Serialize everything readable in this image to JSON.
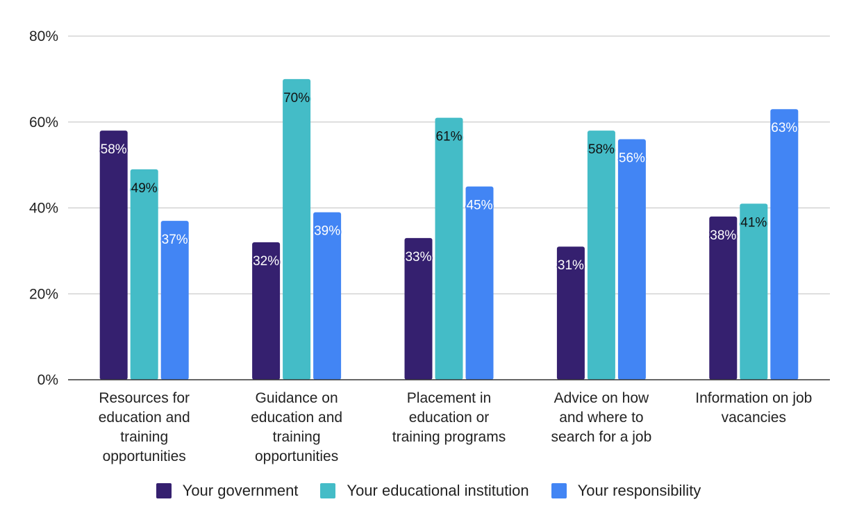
{
  "chart_data": {
    "type": "bar",
    "categories": [
      [
        "Resources for",
        "education and",
        "training",
        "opportunities"
      ],
      [
        "Guidance on",
        "education and",
        "training",
        "opportunities"
      ],
      [
        "Placement in",
        "education or",
        "training programs"
      ],
      [
        "Advice on how",
        "and where to",
        "search for a job"
      ],
      [
        "Information on job",
        "vacancies"
      ]
    ],
    "series": [
      {
        "name": "Your government",
        "color": "#35206f",
        "values": [
          58,
          32,
          33,
          31,
          38
        ],
        "labels": [
          "58%",
          "32%",
          "33%",
          "31%",
          "38%"
        ]
      },
      {
        "name": "Your educational institution",
        "color": "#44bcc7",
        "values": [
          49,
          70,
          61,
          58,
          41
        ],
        "labels": [
          "49%",
          "70%",
          "61%",
          "58%",
          "41%"
        ]
      },
      {
        "name": "Your responsibility",
        "color": "#4285f4",
        "values": [
          37,
          39,
          45,
          56,
          63
        ],
        "labels": [
          "37%",
          "39%",
          "45%",
          "56%",
          "63%"
        ]
      }
    ],
    "ylim": [
      0,
      80
    ],
    "yticks": [
      0,
      20,
      40,
      60,
      80
    ],
    "ytick_labels": [
      "0%",
      "20%",
      "40%",
      "60%",
      "80%"
    ],
    "grid": true,
    "legend_position": "bottom",
    "title": "",
    "xlabel": "",
    "ylabel": ""
  }
}
